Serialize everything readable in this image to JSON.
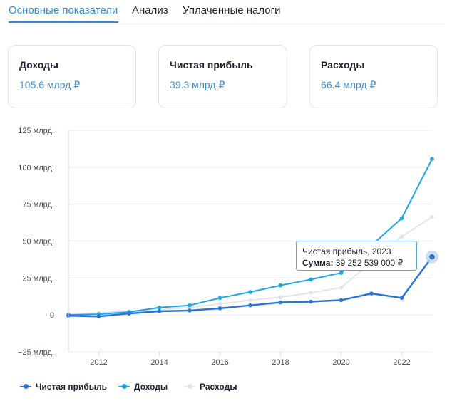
{
  "tabs": [
    {
      "label": "Основные показатели",
      "active": true
    },
    {
      "label": "Анализ",
      "active": false
    },
    {
      "label": "Уплаченные налоги",
      "active": false
    }
  ],
  "cards": [
    {
      "title": "Доходы",
      "value": "105.6 млрд ₽"
    },
    {
      "title": "Чистая прибыль",
      "value": "39.3 млрд ₽"
    },
    {
      "title": "Расходы",
      "value": "66.4 млрд ₽"
    }
  ],
  "tooltip": {
    "title": "Чистая прибыль, 2023",
    "label": "Сумма:",
    "value": "39 252 539 000 ₽"
  },
  "chart_data": {
    "type": "line",
    "x": [
      2011,
      2012,
      2013,
      2014,
      2015,
      2016,
      2017,
      2018,
      2019,
      2020,
      2021,
      2022,
      2023
    ],
    "x_ticks": [
      "2012",
      "2014",
      "2016",
      "2018",
      "2020",
      "2022"
    ],
    "y_ticks": [
      {
        "value": 125,
        "label": "125 млрд."
      },
      {
        "value": 100,
        "label": "100 млрд."
      },
      {
        "value": 75,
        "label": "75 млрд."
      },
      {
        "value": 50,
        "label": "50 млрд."
      },
      {
        "value": 25,
        "label": "25 млрд."
      },
      {
        "value": 0,
        "label": "0"
      },
      {
        "value": -25,
        "label": "−25 млрд."
      }
    ],
    "ylim": [
      -25,
      125
    ],
    "xlim": [
      2011,
      2023
    ],
    "grid": true,
    "legend_position": "bottom-left",
    "series": [
      {
        "name": "Расходы",
        "color": "#e3e5ea",
        "values": [
          0.5,
          1.5,
          2.5,
          3.5,
          5,
          7.5,
          10,
          12,
          15,
          18.5,
          null,
          53,
          66.4
        ]
      },
      {
        "name": "Доходы",
        "color": "#1ea5e6",
        "values": [
          0,
          0.5,
          2,
          5,
          6.5,
          11.5,
          15.5,
          20,
          24,
          28.5,
          null,
          65.5,
          105.6
        ]
      },
      {
        "name": "Чистая прибыль",
        "color": "#2c74d6",
        "values": [
          -0.5,
          -1,
          1,
          2.5,
          3,
          4.5,
          6.5,
          8.5,
          9,
          10,
          14.5,
          11.5,
          39.3
        ]
      }
    ],
    "highlight": {
      "series": "Чистая прибыль",
      "x": 2023,
      "y": 39.3
    }
  }
}
